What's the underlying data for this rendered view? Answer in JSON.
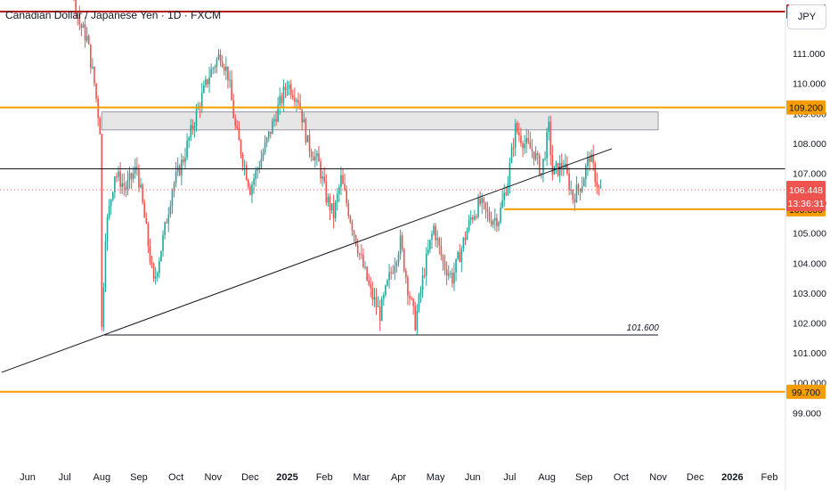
{
  "header": {
    "title": "Canadian Dollar / Japanese Yen · 1D · FXCM",
    "currency": "JPY"
  },
  "colors": {
    "up": "#26a69a",
    "down": "#ef5350",
    "resistance_red": "#b71c1c",
    "orange": "#f59c00",
    "black_line": "#131722",
    "zone_fill": "#e6e6e6",
    "zone_border": "#9598a1"
  },
  "chart_data": {
    "type": "candlestick",
    "instrument": "Canadian Dollar / Japanese Yen",
    "timeframe": "1D",
    "source": "FXCM",
    "ylim": [
      98.5,
      113.6
    ],
    "y_ticks": [
      99,
      100,
      101,
      102,
      103,
      104,
      105,
      106,
      107,
      108,
      109,
      110,
      111,
      112
    ],
    "y_tick_labels": [
      "99.000",
      "100.000",
      "101.000",
      "102.000",
      "103.000",
      "104.000",
      "105.000",
      "106.000",
      "107.000",
      "108.000",
      "109.000",
      "110.000",
      "111.000",
      "112.000"
    ],
    "x_labels": [
      {
        "label": "Jun",
        "month": 0
      },
      {
        "label": "Jul",
        "month": 1
      },
      {
        "label": "Aug",
        "month": 2
      },
      {
        "label": "Sep",
        "month": 3
      },
      {
        "label": "Oct",
        "month": 4
      },
      {
        "label": "Nov",
        "month": 5
      },
      {
        "label": "Dec",
        "month": 6
      },
      {
        "label": "2025",
        "month": 7,
        "bold": true
      },
      {
        "label": "Feb",
        "month": 8
      },
      {
        "label": "Mar",
        "month": 9
      },
      {
        "label": "Apr",
        "month": 10
      },
      {
        "label": "May",
        "month": 11
      },
      {
        "label": "Jun",
        "month": 12
      },
      {
        "label": "Jul",
        "month": 13
      },
      {
        "label": "Aug",
        "month": 14
      },
      {
        "label": "Sep",
        "month": 15
      },
      {
        "label": "Oct",
        "month": 16
      },
      {
        "label": "Nov",
        "month": 17
      },
      {
        "label": "Dec",
        "month": 18
      },
      {
        "label": "2026",
        "month": 19,
        "bold": true
      },
      {
        "label": "Feb",
        "month": 20
      }
    ],
    "price_path": [
      [
        -0.2,
        113.2
      ],
      [
        0.4,
        113.6
      ],
      [
        0.9,
        113.3
      ],
      [
        1.2,
        113.6
      ],
      [
        1.45,
        112.0
      ],
      [
        1.65,
        111.5
      ],
      [
        1.85,
        110.0
      ],
      [
        2.0,
        108.5
      ],
      [
        2.05,
        101.8
      ],
      [
        2.15,
        105.0
      ],
      [
        2.4,
        107.0
      ],
      [
        2.7,
        106.5
      ],
      [
        3.0,
        107.2
      ],
      [
        3.2,
        105.5
      ],
      [
        3.45,
        103.3
      ],
      [
        3.7,
        104.8
      ],
      [
        3.95,
        106.5
      ],
      [
        4.25,
        107.5
      ],
      [
        4.6,
        109.0
      ],
      [
        4.95,
        110.3
      ],
      [
        5.25,
        111.0
      ],
      [
        5.45,
        110.3
      ],
      [
        5.65,
        108.5
      ],
      [
        5.85,
        107.5
      ],
      [
        6.05,
        106.5
      ],
      [
        6.35,
        107.5
      ],
      [
        6.75,
        109.0
      ],
      [
        7.05,
        110.0
      ],
      [
        7.35,
        109.5
      ],
      [
        7.6,
        108.0
      ],
      [
        7.9,
        107.3
      ],
      [
        8.1,
        106.2
      ],
      [
        8.3,
        105.6
      ],
      [
        8.5,
        106.8
      ],
      [
        8.75,
        105.5
      ],
      [
        9.0,
        104.3
      ],
      [
        9.3,
        103.0
      ],
      [
        9.55,
        102.3
      ],
      [
        9.8,
        103.5
      ],
      [
        10.1,
        104.7
      ],
      [
        10.3,
        103.2
      ],
      [
        10.5,
        102.0
      ],
      [
        10.75,
        103.8
      ],
      [
        11.0,
        105.2
      ],
      [
        11.25,
        104.0
      ],
      [
        11.5,
        103.5
      ],
      [
        11.75,
        104.5
      ],
      [
        12.0,
        105.5
      ],
      [
        12.25,
        106.0
      ],
      [
        12.5,
        105.5
      ],
      [
        12.75,
        105.5
      ],
      [
        13.0,
        106.8
      ],
      [
        13.2,
        108.5
      ],
      [
        13.45,
        108.0
      ],
      [
        13.7,
        107.7
      ],
      [
        13.9,
        107.0
      ],
      [
        14.1,
        108.5
      ],
      [
        14.2,
        107.0
      ],
      [
        14.5,
        107.3
      ],
      [
        14.75,
        106.2
      ],
      [
        15.0,
        106.7
      ],
      [
        15.2,
        107.6
      ],
      [
        15.45,
        106.45
      ]
    ],
    "last_price": "106.448",
    "countdown": "13:36:31",
    "levels": [
      {
        "name": "resistance-112400",
        "price": 112.4,
        "label": "112.400",
        "color": "#b71c1c"
      },
      {
        "name": "resistance-109200",
        "price": 109.2,
        "label": "109.200",
        "color": "#f59c00"
      },
      {
        "name": "support-105800",
        "price": 105.8,
        "label": "105.800",
        "color": "#f59c00",
        "start_month": 12.85
      },
      {
        "name": "support-99700",
        "price": 99.7,
        "label": "99.700",
        "color": "#f59c00"
      },
      {
        "name": "horizontal-107150",
        "price": 107.15,
        "color": "#131722"
      },
      {
        "name": "support-101600",
        "price": 101.6,
        "color": "#131722",
        "start_month": 2.05,
        "end_month": 17.0,
        "annotation": "101.600"
      }
    ],
    "trendline": {
      "from": [
        -0.7,
        100.35
      ],
      "to": [
        15.75,
        107.82
      ]
    },
    "zone": {
      "from_month": 2.0,
      "to_month": 17.0,
      "top": 109.05,
      "bottom": 108.45
    }
  }
}
